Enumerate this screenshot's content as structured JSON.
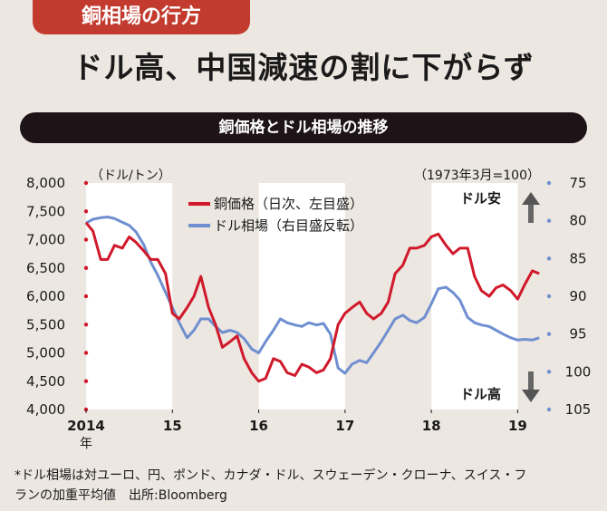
{
  "banner": {
    "tag": "銅相場の行方",
    "headline": "ドル高、中国減速の割に下がらず"
  },
  "chart_data": {
    "type": "line",
    "title": "銅価格とドル相場の推移",
    "left_axis": {
      "unit": "（ドル/トン）",
      "min": 4000,
      "max": 8000,
      "ticks": [
        "8,000",
        "7,500",
        "7,000",
        "6,500",
        "6,000",
        "5,500",
        "5,000",
        "4,500",
        "4,000"
      ]
    },
    "right_axis": {
      "unit": "（1973年3月=100）",
      "reversed": true,
      "min": 75,
      "max": 105,
      "ticks": [
        "75",
        "80",
        "85",
        "90",
        "95",
        "100",
        "105"
      ]
    },
    "x_labels": [
      "2014",
      "15",
      "16",
      "17",
      "18",
      "19"
    ],
    "x_year_suffix": "年",
    "legend": [
      "銅価格（日次、左目盛）",
      "ドル相場（右目盛反転）"
    ],
    "annotations": {
      "top": "ドル安",
      "bottom": "ドル高"
    },
    "colors": {
      "copper": "#d0192a",
      "dollar": "#6f8fd0",
      "band": "#ffffff",
      "bg": "#ece7e1"
    },
    "series": [
      {
        "name": "銅価格（日次、左目盛）",
        "axis": "left",
        "x": [
          2014.0,
          2014.08,
          2014.17,
          2014.25,
          2014.33,
          2014.42,
          2014.5,
          2014.58,
          2014.67,
          2014.75,
          2014.83,
          2014.92,
          2015.0,
          2015.08,
          2015.17,
          2015.25,
          2015.33,
          2015.42,
          2015.5,
          2015.58,
          2015.67,
          2015.75,
          2015.83,
          2015.92,
          2016.0,
          2016.08,
          2016.17,
          2016.25,
          2016.33,
          2016.42,
          2016.5,
          2016.58,
          2016.67,
          2016.75,
          2016.83,
          2016.92,
          2017.0,
          2017.08,
          2017.17,
          2017.25,
          2017.33,
          2017.42,
          2017.5,
          2017.58,
          2017.67,
          2017.75,
          2017.83,
          2017.92,
          2018.0,
          2018.08,
          2018.17,
          2018.25,
          2018.33,
          2018.42,
          2018.5,
          2018.58,
          2018.67,
          2018.75,
          2018.83,
          2018.92,
          2019.0,
          2019.08,
          2019.17,
          2019.25
        ],
        "y": [
          7300,
          7150,
          6650,
          6650,
          6900,
          6850,
          7050,
          6950,
          6800,
          6650,
          6650,
          6400,
          5700,
          5600,
          5800,
          6000,
          6350,
          5800,
          5500,
          5100,
          5200,
          5300,
          4900,
          4650,
          4500,
          4550,
          4900,
          4850,
          4650,
          4600,
          4800,
          4750,
          4650,
          4700,
          4900,
          5500,
          5700,
          5800,
          5900,
          5700,
          5600,
          5700,
          5900,
          6400,
          6550,
          6850,
          6850,
          6900,
          7050,
          7100,
          6900,
          6750,
          6850,
          6850,
          6350,
          6100,
          6000,
          6150,
          6200,
          6100,
          5950,
          6200,
          6450,
          6400
        ]
      },
      {
        "name": "ドル相場（右目盛反転）",
        "axis": "right",
        "x": [
          2014.0,
          2014.08,
          2014.17,
          2014.25,
          2014.33,
          2014.42,
          2014.5,
          2014.58,
          2014.67,
          2014.75,
          2014.83,
          2014.92,
          2015.0,
          2015.08,
          2015.17,
          2015.25,
          2015.33,
          2015.42,
          2015.5,
          2015.58,
          2015.67,
          2015.75,
          2015.83,
          2015.92,
          2016.0,
          2016.08,
          2016.17,
          2016.25,
          2016.33,
          2016.42,
          2016.5,
          2016.58,
          2016.67,
          2016.75,
          2016.83,
          2016.92,
          2017.0,
          2017.08,
          2017.17,
          2017.25,
          2017.33,
          2017.42,
          2017.5,
          2017.58,
          2017.67,
          2017.75,
          2017.83,
          2017.92,
          2018.0,
          2018.08,
          2018.17,
          2018.25,
          2018.33,
          2018.42,
          2018.5,
          2018.58,
          2018.67,
          2018.75,
          2018.83,
          2018.92,
          2019.0,
          2019.08,
          2019.17,
          2019.25
        ],
        "y": [
          80.3,
          79.8,
          79.6,
          79.5,
          79.7,
          80.2,
          80.6,
          81.5,
          83.2,
          85.5,
          87.2,
          89.5,
          91.5,
          93.5,
          95.5,
          94.5,
          93.0,
          93.0,
          94.0,
          94.8,
          94.5,
          94.8,
          95.6,
          97.0,
          97.5,
          96.0,
          94.5,
          93.0,
          93.5,
          93.8,
          94.0,
          93.5,
          93.8,
          93.6,
          95.0,
          99.5,
          100.2,
          99.0,
          98.5,
          98.8,
          97.5,
          96.0,
          94.5,
          93.0,
          92.5,
          93.2,
          93.5,
          92.8,
          91.0,
          89.0,
          88.8,
          89.5,
          90.5,
          92.8,
          93.5,
          93.8,
          94.0,
          94.5,
          95.0,
          95.5,
          95.8,
          95.7,
          95.8,
          95.5
        ]
      }
    ],
    "shaded_years": [
      [
        2014.0,
        2015.0
      ],
      [
        2016.0,
        2017.0
      ],
      [
        2018.0,
        2019.0
      ]
    ]
  },
  "footnote": {
    "line1": "*ドル相場は対ユーロ、円、ポンド、カナダ・ドル、スウェーデン・クローナ、スイス・フ",
    "line2": "ランの加重平均値　出所:Bloomberg"
  }
}
